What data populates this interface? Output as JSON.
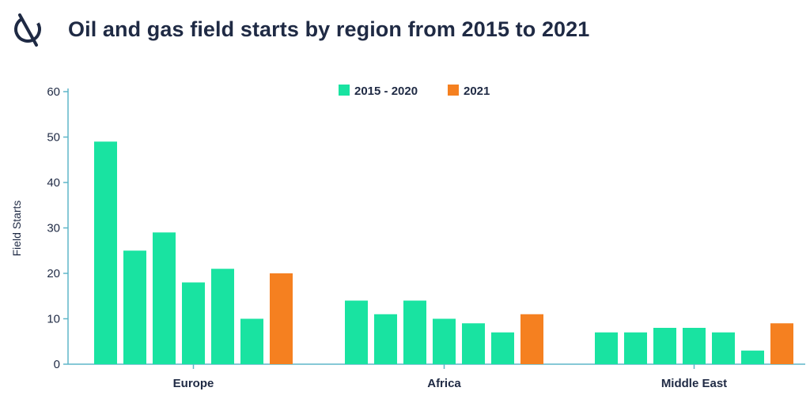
{
  "header": {
    "title": "Oil and gas field starts by region from 2015 to 2021",
    "logo_icon": "circle-slash-logo-icon"
  },
  "colors": {
    "series_2015_2020": "#19e3a1",
    "series_2021": "#f58020",
    "axis": "#5fb6c8",
    "text": "#1f2a44"
  },
  "chart_data": {
    "type": "bar",
    "title": "Oil and gas field starts by region from 2015 to 2021",
    "xlabel": "",
    "ylabel": "Field Starts",
    "ylim": [
      0,
      60
    ],
    "yticks": [
      0,
      10,
      20,
      30,
      40,
      50,
      60
    ],
    "grid": false,
    "legend_position": "top-center",
    "legend": [
      {
        "label": "2015 - 2020",
        "color": "#19e3a1"
      },
      {
        "label": "2021",
        "color": "#f58020"
      }
    ],
    "groups": [
      {
        "category": "Europe",
        "values_2015_2020": [
          49,
          25,
          29,
          18,
          21,
          10
        ],
        "value_2021": 20
      },
      {
        "category": "Africa",
        "values_2015_2020": [
          14,
          11,
          14,
          10,
          9,
          7
        ],
        "value_2021": 11
      },
      {
        "category": "Middle East",
        "values_2015_2020": [
          7,
          7,
          8,
          8,
          7,
          3
        ],
        "value_2021": 9
      }
    ]
  }
}
